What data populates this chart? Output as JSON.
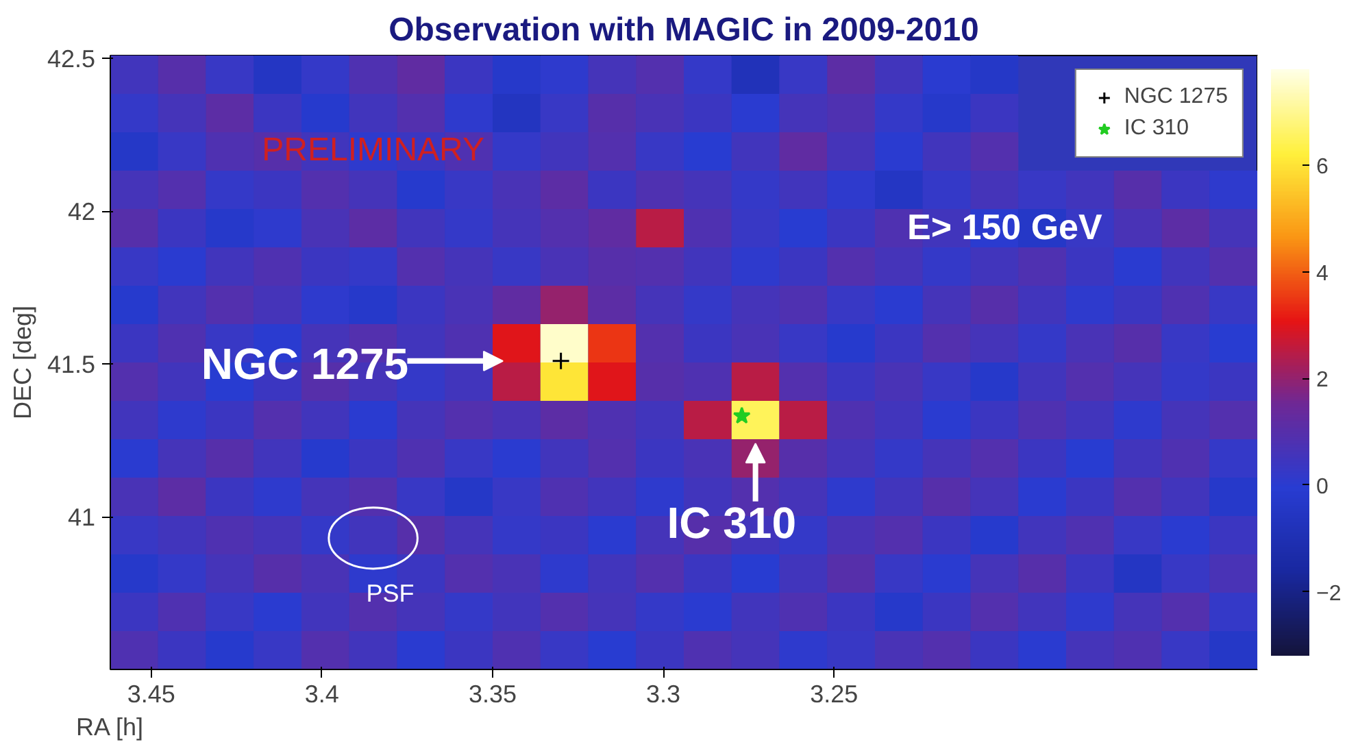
{
  "chart_data": {
    "type": "heatmap",
    "title": "Observation with MAGIC in 2009-2010",
    "xlabel": "RA [h]",
    "ylabel": "DEC [deg]",
    "xlim": [
      3.462,
      3.126
    ],
    "ylim": [
      40.5,
      42.51
    ],
    "xticks": [
      3.45,
      3.4,
      3.35,
      3.3,
      3.25
    ],
    "yticks": [
      41,
      41.5,
      42,
      42.5
    ],
    "clim": [
      -3.2,
      7.8
    ],
    "cticks": [
      -2,
      0,
      2,
      4,
      6
    ],
    "cells": [
      [
        0.5,
        1.0,
        0.3,
        -0.5,
        0.2,
        0.8,
        1.2,
        0.4,
        -0.3,
        0.1,
        0.6,
        0.9,
        0.2,
        -0.8,
        0.3,
        1.1,
        0.5,
        0.0,
        -0.4,
        null,
        null,
        null,
        null,
        null
      ],
      [
        0.2,
        0.6,
        1.1,
        0.4,
        -0.2,
        0.5,
        0.9,
        0.1,
        -0.6,
        0.3,
        1.0,
        0.7,
        0.4,
        0.0,
        0.6,
        0.8,
        0.2,
        -0.3,
        0.4,
        null,
        null,
        null,
        null,
        null
      ],
      [
        -0.4,
        0.3,
        0.8,
        1.0,
        0.5,
        0.1,
        0.4,
        0.8,
        0.2,
        0.5,
        0.9,
        0.3,
        -0.1,
        0.5,
        1.2,
        0.6,
        0.0,
        0.5,
        0.9,
        null,
        null,
        null,
        null,
        null
      ],
      [
        0.6,
        0.9,
        0.2,
        0.4,
        0.9,
        0.6,
        -0.2,
        0.3,
        0.7,
        1.1,
        0.4,
        0.8,
        0.6,
        0.2,
        0.5,
        0.1,
        -0.5,
        0.2,
        0.6,
        0.3,
        0.5,
        1.0,
        0.4,
        0.1
      ],
      [
        1.0,
        0.4,
        -0.3,
        0.1,
        0.7,
        1.1,
        0.5,
        0.2,
        0.6,
        0.9,
        1.2,
        2.5,
        0.8,
        0.3,
        -0.1,
        0.4,
        0.8,
        0.5,
        0.0,
        -0.4,
        0.3,
        0.7,
        1.1,
        0.6
      ],
      [
        0.3,
        0.0,
        0.5,
        0.8,
        0.4,
        0.2,
        0.9,
        0.6,
        0.3,
        0.7,
        1.0,
        0.9,
        0.5,
        0.1,
        0.4,
        0.9,
        0.6,
        0.2,
        0.5,
        0.8,
        0.4,
        0.0,
        0.5,
        0.9
      ],
      [
        -0.2,
        0.5,
        0.9,
        0.6,
        0.1,
        -0.3,
        0.4,
        0.7,
        1.2,
        2.0,
        1.1,
        0.6,
        0.2,
        0.6,
        0.8,
        0.3,
        0.0,
        0.6,
        1.0,
        0.5,
        0.1,
        0.4,
        0.8,
        0.3
      ],
      [
        0.4,
        0.8,
        0.3,
        0.0,
        0.6,
        0.9,
        0.5,
        0.8,
        3.0,
        7.5,
        3.5,
        0.9,
        0.4,
        0.7,
        0.3,
        -0.2,
        0.4,
        0.9,
        0.6,
        0.2,
        0.7,
        1.0,
        0.3,
        -0.1
      ],
      [
        0.9,
        0.5,
        -0.1,
        0.4,
        1.0,
        0.6,
        0.2,
        0.5,
        2.5,
        6.0,
        3.0,
        1.0,
        0.8,
        2.5,
        0.9,
        0.4,
        0.7,
        0.3,
        -0.3,
        0.5,
        0.9,
        0.6,
        0.2,
        0.4
      ],
      [
        0.5,
        0.1,
        0.4,
        0.9,
        0.5,
        0.0,
        0.6,
        0.9,
        0.7,
        1.1,
        0.8,
        0.5,
        2.5,
        6.5,
        2.5,
        0.8,
        0.5,
        0.0,
        0.4,
        0.8,
        0.5,
        0.1,
        0.6,
        0.9
      ],
      [
        0.0,
        0.6,
        1.0,
        0.5,
        -0.2,
        0.4,
        0.8,
        0.3,
        0.0,
        0.5,
        0.9,
        0.4,
        0.7,
        2.0,
        1.0,
        0.6,
        0.2,
        0.6,
        0.9,
        0.4,
        -0.1,
        0.5,
        0.8,
        0.2
      ],
      [
        0.7,
        1.1,
        0.4,
        0.1,
        0.6,
        0.9,
        0.3,
        -0.4,
        0.3,
        0.8,
        0.5,
        0.1,
        0.5,
        0.9,
        0.6,
        0.1,
        0.5,
        1.0,
        0.6,
        0.0,
        0.4,
        0.9,
        0.5,
        -0.3
      ],
      [
        0.3,
        0.5,
        0.8,
        0.6,
        0.2,
        0.5,
        1.0,
        0.6,
        0.2,
        0.4,
        0.0,
        0.6,
        1.0,
        0.5,
        0.2,
        0.7,
        0.9,
        0.4,
        -0.2,
        0.5,
        0.8,
        0.3,
        0.0,
        0.4
      ],
      [
        -0.3,
        0.2,
        0.6,
        1.0,
        0.7,
        0.1,
        0.4,
        0.9,
        0.7,
        0.1,
        0.5,
        0.9,
        0.4,
        -0.1,
        0.5,
        1.0,
        0.3,
        0.0,
        0.6,
        1.0,
        0.4,
        -0.5,
        0.3,
        0.7
      ],
      [
        0.4,
        0.8,
        0.3,
        0.0,
        0.5,
        0.9,
        0.6,
        0.2,
        0.5,
        0.9,
        0.6,
        0.2,
        0.0,
        0.5,
        0.8,
        0.4,
        -0.3,
        0.4,
        0.9,
        0.5,
        0.1,
        0.6,
        0.9,
        0.2
      ],
      [
        0.8,
        0.4,
        -0.2,
        0.3,
        0.9,
        0.5,
        0.0,
        0.4,
        0.8,
        0.3,
        -0.1,
        0.4,
        0.8,
        0.6,
        0.1,
        0.3,
        0.7,
        0.9,
        0.4,
        0.0,
        0.6,
        0.8,
        0.3,
        -0.4
      ]
    ],
    "series": [
      {
        "name": "NGC 1275",
        "type": "scatter",
        "marker": "cross",
        "color": "#000000",
        "x": [
          3.33
        ],
        "values": [
          41.51
        ]
      },
      {
        "name": "IC 310",
        "type": "scatter",
        "marker": "star",
        "color": "#22cc22",
        "x": [
          3.277
        ],
        "values": [
          41.33
        ]
      }
    ],
    "legend": "top right",
    "annotations": [
      "NGC 1275",
      "IC 310",
      "PRELIMINARY",
      "E> 150 GeV",
      "PSF"
    ]
  }
}
